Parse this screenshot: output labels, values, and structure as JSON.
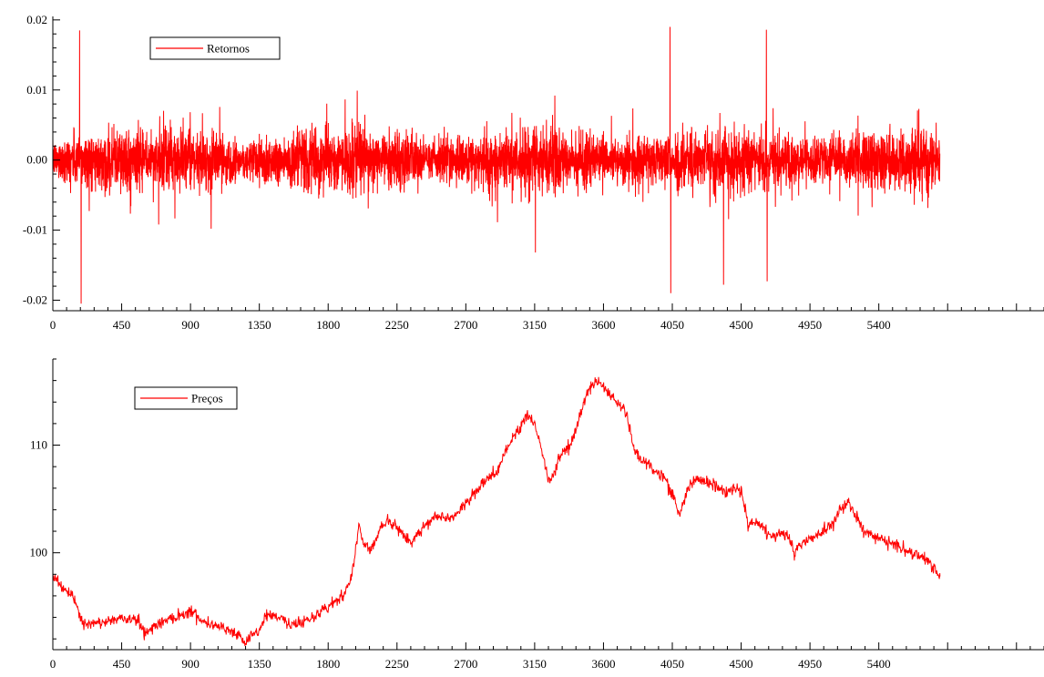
{
  "chart_data": [
    {
      "type": "line",
      "title": "",
      "xlabel": "",
      "ylabel": "",
      "xlim": [
        0,
        6480
      ],
      "ylim": [
        -0.0215,
        0.0205
      ],
      "x_ticks": [
        0,
        450,
        900,
        1350,
        1800,
        2250,
        2700,
        3150,
        3600,
        4050,
        4500,
        4950,
        5400
      ],
      "x_tick_labels": [
        "0",
        "450",
        "900",
        "1350",
        "1800",
        "2250",
        "2700",
        "3150",
        "3600",
        "4050",
        "4500",
        "4950",
        "5400"
      ],
      "y_ticks": [
        0.02,
        0.01,
        0.0,
        -0.01,
        -0.02
      ],
      "y_tick_labels": [
        "0.02",
        "0.01",
        "0.00",
        "-0.01",
        "-0.02"
      ],
      "legend": {
        "position": "top-left"
      },
      "series": [
        {
          "name": "Retornos",
          "color": "#ff0000",
          "n_points": 5800,
          "base_volatility": 0.0015,
          "spikes": [
            {
              "x": 175,
              "y": 0.0185
            },
            {
              "x": 185,
              "y": -0.0205
            },
            {
              "x": 1035,
              "y": -0.0098
            },
            {
              "x": 1990,
              "y": 0.0099
            },
            {
              "x": 3155,
              "y": -0.0132
            },
            {
              "x": 4035,
              "y": 0.019
            },
            {
              "x": 4040,
              "y": -0.019
            },
            {
              "x": 4385,
              "y": -0.0178
            },
            {
              "x": 4665,
              "y": 0.0186
            },
            {
              "x": 4670,
              "y": -0.0173
            }
          ]
        }
      ]
    },
    {
      "type": "line",
      "title": "",
      "xlabel": "",
      "ylabel": "",
      "xlim": [
        0,
        6480
      ],
      "ylim": [
        91.0,
        118.0
      ],
      "x_ticks": [
        0,
        450,
        900,
        1350,
        1800,
        2250,
        2700,
        3150,
        3600,
        4050,
        4500,
        4950,
        5400
      ],
      "x_tick_labels": [
        "0",
        "450",
        "900",
        "1350",
        "1800",
        "2250",
        "2700",
        "3150",
        "3600",
        "4050",
        "4500",
        "4950",
        "5400"
      ],
      "y_ticks": [
        110,
        100
      ],
      "y_tick_labels": [
        "110",
        "100"
      ],
      "legend": {
        "position": "top-left"
      },
      "series": [
        {
          "name": "Preços",
          "color": "#ff0000",
          "x": [
            0,
            80,
            150,
            200,
            300,
            450,
            550,
            600,
            700,
            900,
            1000,
            1100,
            1200,
            1250,
            1350,
            1400,
            1500,
            1550,
            1700,
            1850,
            1900,
            1950,
            2000,
            2030,
            2080,
            2150,
            2200,
            2300,
            2350,
            2400,
            2500,
            2600,
            2650,
            2700,
            2800,
            2900,
            3000,
            3050,
            3100,
            3150,
            3200,
            3250,
            3300,
            3400,
            3450,
            3500,
            3550,
            3650,
            3750,
            3800,
            3900,
            4000,
            4050,
            4100,
            4150,
            4200,
            4300,
            4400,
            4450,
            4500,
            4550,
            4600,
            4700,
            4800,
            4850,
            4900,
            5000,
            5100,
            5150,
            5200,
            5300,
            5400,
            5500,
            5600,
            5700,
            5800
          ],
          "y": [
            98.0,
            96.5,
            95.5,
            93.2,
            93.5,
            93.9,
            93.8,
            92.6,
            93.5,
            94.6,
            93.5,
            93.2,
            92.5,
            91.6,
            92.8,
            94.3,
            94.0,
            93.2,
            94.0,
            95.5,
            96.0,
            97.5,
            102.5,
            101.0,
            100.3,
            102.5,
            103.0,
            101.5,
            101.0,
            102.0,
            103.5,
            103.2,
            103.8,
            104.5,
            106.3,
            107.5,
            110.5,
            111.5,
            112.8,
            112.0,
            109.2,
            106.5,
            108.5,
            110.5,
            113.0,
            115.0,
            116.0,
            114.5,
            113.0,
            109.5,
            108.0,
            107.0,
            105.5,
            103.5,
            106.0,
            106.8,
            106.5,
            105.5,
            106.0,
            105.8,
            102.5,
            103.0,
            101.5,
            102.0,
            99.8,
            101.0,
            101.5,
            102.8,
            104.0,
            104.7,
            102.0,
            101.3,
            100.8,
            100.0,
            99.6,
            97.8
          ]
        }
      ]
    }
  ]
}
